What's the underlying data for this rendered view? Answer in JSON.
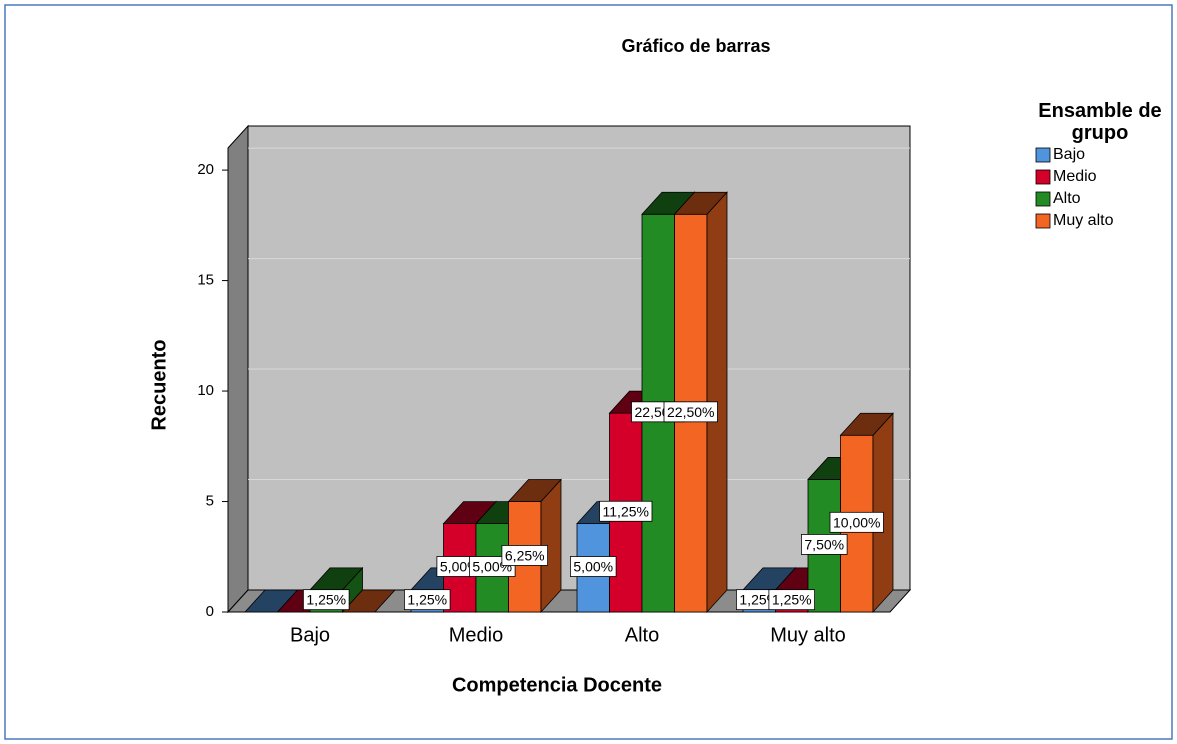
{
  "chart_data": {
    "type": "bar3d",
    "title": "Gráfico de barras",
    "x_label": "Competencia Docente",
    "y_label": "Recuento",
    "legend_title": "Ensamble de grupo",
    "categories": [
      "Bajo",
      "Medio",
      "Alto",
      "Muy alto"
    ],
    "series": [
      {
        "name": "Bajo",
        "color": "#4f94dc",
        "values": [
          0,
          1,
          4,
          1
        ],
        "value_labels": [
          null,
          "1,25%",
          "5,00%",
          "1,25%"
        ]
      },
      {
        "name": "Medio",
        "color": "#d4002a",
        "values": [
          0,
          4,
          9,
          1
        ],
        "value_labels": [
          null,
          "5,00%",
          "11,25%",
          "1,25%"
        ]
      },
      {
        "name": "Alto",
        "color": "#238b23",
        "values": [
          1,
          4,
          18,
          6
        ],
        "value_labels": [
          "1,25%",
          "5,00%",
          "22,50%",
          "7,50%"
        ]
      },
      {
        "name": "Muy alto",
        "color": "#f26522",
        "values": [
          0,
          5,
          18,
          8
        ],
        "value_labels": [
          null,
          "6,25%",
          "22,50%",
          "10,00%"
        ]
      }
    ],
    "ylim": [
      0,
      21
    ],
    "yticks": [
      0,
      5,
      10,
      15,
      20
    ],
    "grid": true,
    "legend": "right"
  }
}
